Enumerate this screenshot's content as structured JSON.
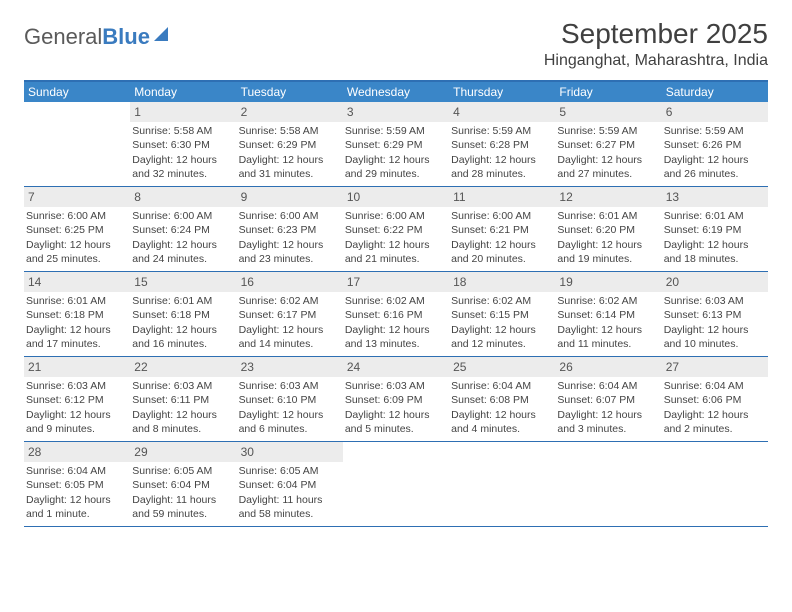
{
  "brand": {
    "part1": "General",
    "part2": "Blue"
  },
  "title": "September 2025",
  "location": "Hinganghat, Maharashtra, India",
  "colors": {
    "header_bg": "#3a86c8",
    "border": "#2e6fb3",
    "daynum_bg": "#ececec",
    "text": "#404040"
  },
  "typography": {
    "title_fontsize": 28,
    "location_fontsize": 16,
    "dow_fontsize": 12,
    "body_fontsize": 10.5
  },
  "dow": [
    "Sunday",
    "Monday",
    "Tuesday",
    "Wednesday",
    "Thursday",
    "Friday",
    "Saturday"
  ],
  "weeks": [
    [
      {
        "n": "",
        "sr": "",
        "ss": "",
        "dl": ""
      },
      {
        "n": "1",
        "sr": "Sunrise: 5:58 AM",
        "ss": "Sunset: 6:30 PM",
        "dl": "Daylight: 12 hours and 32 minutes."
      },
      {
        "n": "2",
        "sr": "Sunrise: 5:58 AM",
        "ss": "Sunset: 6:29 PM",
        "dl": "Daylight: 12 hours and 31 minutes."
      },
      {
        "n": "3",
        "sr": "Sunrise: 5:59 AM",
        "ss": "Sunset: 6:29 PM",
        "dl": "Daylight: 12 hours and 29 minutes."
      },
      {
        "n": "4",
        "sr": "Sunrise: 5:59 AM",
        "ss": "Sunset: 6:28 PM",
        "dl": "Daylight: 12 hours and 28 minutes."
      },
      {
        "n": "5",
        "sr": "Sunrise: 5:59 AM",
        "ss": "Sunset: 6:27 PM",
        "dl": "Daylight: 12 hours and 27 minutes."
      },
      {
        "n": "6",
        "sr": "Sunrise: 5:59 AM",
        "ss": "Sunset: 6:26 PM",
        "dl": "Daylight: 12 hours and 26 minutes."
      }
    ],
    [
      {
        "n": "7",
        "sr": "Sunrise: 6:00 AM",
        "ss": "Sunset: 6:25 PM",
        "dl": "Daylight: 12 hours and 25 minutes."
      },
      {
        "n": "8",
        "sr": "Sunrise: 6:00 AM",
        "ss": "Sunset: 6:24 PM",
        "dl": "Daylight: 12 hours and 24 minutes."
      },
      {
        "n": "9",
        "sr": "Sunrise: 6:00 AM",
        "ss": "Sunset: 6:23 PM",
        "dl": "Daylight: 12 hours and 23 minutes."
      },
      {
        "n": "10",
        "sr": "Sunrise: 6:00 AM",
        "ss": "Sunset: 6:22 PM",
        "dl": "Daylight: 12 hours and 21 minutes."
      },
      {
        "n": "11",
        "sr": "Sunrise: 6:00 AM",
        "ss": "Sunset: 6:21 PM",
        "dl": "Daylight: 12 hours and 20 minutes."
      },
      {
        "n": "12",
        "sr": "Sunrise: 6:01 AM",
        "ss": "Sunset: 6:20 PM",
        "dl": "Daylight: 12 hours and 19 minutes."
      },
      {
        "n": "13",
        "sr": "Sunrise: 6:01 AM",
        "ss": "Sunset: 6:19 PM",
        "dl": "Daylight: 12 hours and 18 minutes."
      }
    ],
    [
      {
        "n": "14",
        "sr": "Sunrise: 6:01 AM",
        "ss": "Sunset: 6:18 PM",
        "dl": "Daylight: 12 hours and 17 minutes."
      },
      {
        "n": "15",
        "sr": "Sunrise: 6:01 AM",
        "ss": "Sunset: 6:18 PM",
        "dl": "Daylight: 12 hours and 16 minutes."
      },
      {
        "n": "16",
        "sr": "Sunrise: 6:02 AM",
        "ss": "Sunset: 6:17 PM",
        "dl": "Daylight: 12 hours and 14 minutes."
      },
      {
        "n": "17",
        "sr": "Sunrise: 6:02 AM",
        "ss": "Sunset: 6:16 PM",
        "dl": "Daylight: 12 hours and 13 minutes."
      },
      {
        "n": "18",
        "sr": "Sunrise: 6:02 AM",
        "ss": "Sunset: 6:15 PM",
        "dl": "Daylight: 12 hours and 12 minutes."
      },
      {
        "n": "19",
        "sr": "Sunrise: 6:02 AM",
        "ss": "Sunset: 6:14 PM",
        "dl": "Daylight: 12 hours and 11 minutes."
      },
      {
        "n": "20",
        "sr": "Sunrise: 6:03 AM",
        "ss": "Sunset: 6:13 PM",
        "dl": "Daylight: 12 hours and 10 minutes."
      }
    ],
    [
      {
        "n": "21",
        "sr": "Sunrise: 6:03 AM",
        "ss": "Sunset: 6:12 PM",
        "dl": "Daylight: 12 hours and 9 minutes."
      },
      {
        "n": "22",
        "sr": "Sunrise: 6:03 AM",
        "ss": "Sunset: 6:11 PM",
        "dl": "Daylight: 12 hours and 8 minutes."
      },
      {
        "n": "23",
        "sr": "Sunrise: 6:03 AM",
        "ss": "Sunset: 6:10 PM",
        "dl": "Daylight: 12 hours and 6 minutes."
      },
      {
        "n": "24",
        "sr": "Sunrise: 6:03 AM",
        "ss": "Sunset: 6:09 PM",
        "dl": "Daylight: 12 hours and 5 minutes."
      },
      {
        "n": "25",
        "sr": "Sunrise: 6:04 AM",
        "ss": "Sunset: 6:08 PM",
        "dl": "Daylight: 12 hours and 4 minutes."
      },
      {
        "n": "26",
        "sr": "Sunrise: 6:04 AM",
        "ss": "Sunset: 6:07 PM",
        "dl": "Daylight: 12 hours and 3 minutes."
      },
      {
        "n": "27",
        "sr": "Sunrise: 6:04 AM",
        "ss": "Sunset: 6:06 PM",
        "dl": "Daylight: 12 hours and 2 minutes."
      }
    ],
    [
      {
        "n": "28",
        "sr": "Sunrise: 6:04 AM",
        "ss": "Sunset: 6:05 PM",
        "dl": "Daylight: 12 hours and 1 minute."
      },
      {
        "n": "29",
        "sr": "Sunrise: 6:05 AM",
        "ss": "Sunset: 6:04 PM",
        "dl": "Daylight: 11 hours and 59 minutes."
      },
      {
        "n": "30",
        "sr": "Sunrise: 6:05 AM",
        "ss": "Sunset: 6:04 PM",
        "dl": "Daylight: 11 hours and 58 minutes."
      },
      {
        "n": "",
        "sr": "",
        "ss": "",
        "dl": ""
      },
      {
        "n": "",
        "sr": "",
        "ss": "",
        "dl": ""
      },
      {
        "n": "",
        "sr": "",
        "ss": "",
        "dl": ""
      },
      {
        "n": "",
        "sr": "",
        "ss": "",
        "dl": ""
      }
    ]
  ]
}
